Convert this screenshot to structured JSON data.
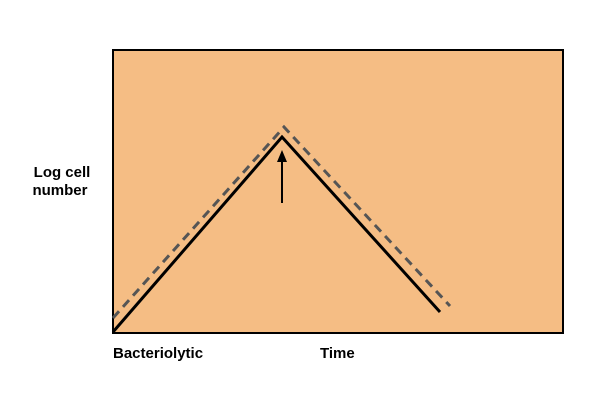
{
  "y_label": {
    "lines": [
      "Log cell",
      "number"
    ]
  },
  "x_label": "Time",
  "corner_label": "Bacteriolytic"
}
